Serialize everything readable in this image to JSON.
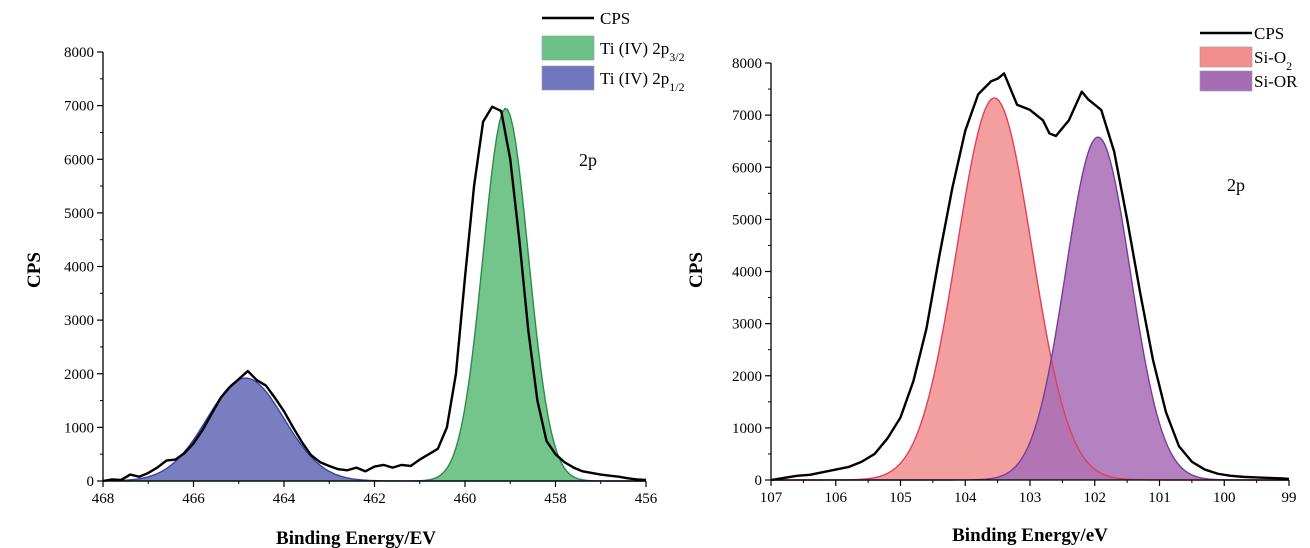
{
  "chart_data": [
    {
      "type": "area",
      "xlabel": "Binding Energy/EV",
      "ylabel": "CPS",
      "xlim": [
        468,
        456
      ],
      "ylim": [
        0,
        8000
      ],
      "x_ticks": [
        "468",
        "466",
        "464",
        "462",
        "460",
        "458",
        "456"
      ],
      "y_ticks": [
        "0",
        "1000",
        "2000",
        "3000",
        "4000",
        "5000",
        "6000",
        "7000",
        "8000"
      ],
      "annotation": "2p",
      "legend": [
        {
          "text": "CPS",
          "kind": "line",
          "color": "#000000"
        },
        {
          "text": "Ti (IV) 2p",
          "sub": "3/2",
          "kind": "area",
          "color": "#6cc286"
        },
        {
          "text": "Ti (IV) 2p",
          "sub": "1/2",
          "kind": "area",
          "color": "#7177bd"
        }
      ],
      "series": [
        {
          "name": "CPS",
          "kind": "line",
          "color": "#000000",
          "x": [
            468.0,
            467.8,
            467.6,
            467.4,
            467.2,
            467.0,
            466.8,
            466.6,
            466.4,
            466.2,
            466.0,
            465.8,
            465.6,
            465.4,
            465.2,
            465.0,
            464.8,
            464.6,
            464.4,
            464.2,
            464.0,
            463.8,
            463.6,
            463.4,
            463.2,
            463.0,
            462.8,
            462.6,
            462.4,
            462.2,
            462.0,
            461.8,
            461.6,
            461.4,
            461.2,
            461.0,
            460.8,
            460.6,
            460.4,
            460.2,
            460.0,
            459.8,
            459.6,
            459.4,
            459.2,
            459.0,
            458.8,
            458.6,
            458.4,
            458.2,
            458.0,
            457.8,
            457.6,
            457.4,
            457.2,
            457.0,
            456.8,
            456.6,
            456.4,
            456.2,
            456.0
          ],
          "y": [
            0,
            30,
            20,
            120,
            80,
            150,
            250,
            380,
            400,
            520,
            700,
            950,
            1250,
            1550,
            1750,
            1900,
            2050,
            1880,
            1780,
            1550,
            1300,
            1000,
            720,
            480,
            350,
            280,
            220,
            200,
            250,
            180,
            270,
            300,
            250,
            300,
            280,
            400,
            500,
            600,
            1000,
            2000,
            3800,
            5500,
            6700,
            6980,
            6900,
            6000,
            4500,
            2800,
            1500,
            750,
            500,
            350,
            250,
            180,
            150,
            120,
            100,
            80,
            50,
            30,
            20
          ]
        },
        {
          "name": "Ti (IV) 2p3/2",
          "kind": "gaussian",
          "color": "#6cc286",
          "stroke": "#2f8a4b",
          "center": 459.1,
          "amplitude": 6950,
          "sigma": 0.5
        },
        {
          "name": "Ti (IV) 2p1/2",
          "kind": "gaussian",
          "color": "#7177bd",
          "stroke": "#3b44a0",
          "center": 464.85,
          "amplitude": 1920,
          "sigma": 0.85
        }
      ]
    },
    {
      "type": "area",
      "xlabel": "Binding Energy/eV",
      "ylabel": "CPS",
      "xlim": [
        107,
        99
      ],
      "ylim": [
        0,
        8000
      ],
      "x_ticks": [
        "107",
        "106",
        "105",
        "104",
        "103",
        "102",
        "101",
        "100",
        "99"
      ],
      "y_ticks": [
        "0",
        "1000",
        "2000",
        "3000",
        "4000",
        "5000",
        "6000",
        "7000",
        "8000"
      ],
      "annotation": "2p",
      "legend": [
        {
          "text": "CPS",
          "kind": "line",
          "color": "#000000"
        },
        {
          "text": "Si-O",
          "sub": "2",
          "kind": "area",
          "color": "#f28e8e"
        },
        {
          "text": "Si-OR",
          "sub": "",
          "kind": "area",
          "color": "#a76cb6"
        }
      ],
      "series": [
        {
          "name": "CPS",
          "kind": "line",
          "color": "#000000",
          "x": [
            107.0,
            106.8,
            106.6,
            106.4,
            106.2,
            106.0,
            105.8,
            105.6,
            105.4,
            105.2,
            105.0,
            104.8,
            104.6,
            104.4,
            104.2,
            104.0,
            103.8,
            103.6,
            103.5,
            103.4,
            103.3,
            103.2,
            103.0,
            102.8,
            102.7,
            102.6,
            102.4,
            102.2,
            102.1,
            101.9,
            101.7,
            101.5,
            101.3,
            101.1,
            100.9,
            100.7,
            100.5,
            100.3,
            100.1,
            99.9,
            99.7,
            99.5,
            99.3,
            99.1,
            99.0
          ],
          "y": [
            0,
            40,
            80,
            100,
            150,
            200,
            250,
            350,
            500,
            800,
            1200,
            1900,
            2900,
            4300,
            5600,
            6700,
            7400,
            7650,
            7700,
            7800,
            7500,
            7200,
            7100,
            6900,
            6650,
            6600,
            6900,
            7450,
            7300,
            7100,
            6300,
            5000,
            3600,
            2300,
            1300,
            650,
            350,
            200,
            120,
            80,
            60,
            50,
            40,
            30,
            20
          ]
        },
        {
          "name": "Si-O2",
          "kind": "gaussian",
          "color": "#f28e8e",
          "stroke": "#e0405a",
          "center": 103.55,
          "amplitude": 7330,
          "sigma": 0.58
        },
        {
          "name": "Si-OR",
          "kind": "gaussian",
          "color": "#a76cb6",
          "stroke": "#7a3c98",
          "center": 101.95,
          "amplitude": 6580,
          "sigma": 0.5
        }
      ]
    }
  ]
}
